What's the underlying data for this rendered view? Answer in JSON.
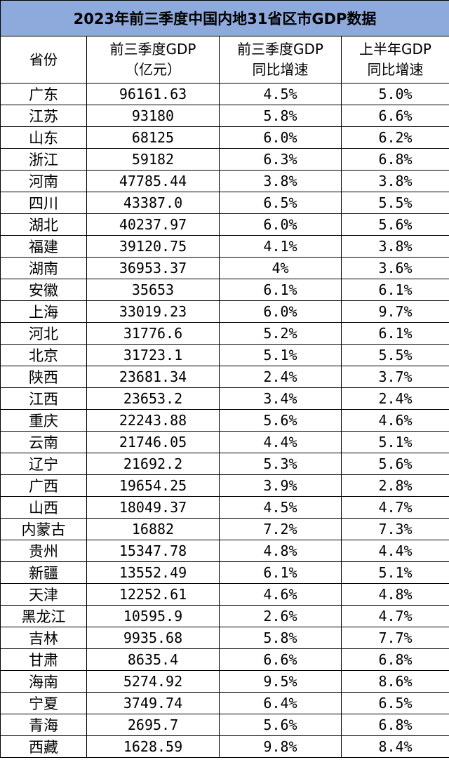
{
  "title": "2023年前三季度中国内地31省区市GDP数据",
  "headers": [
    {
      "line1": "省份",
      "line2": ""
    },
    {
      "line1": "前三季度GDP",
      "line2": "（亿元）"
    },
    {
      "line1": "前三季度GDP",
      "line2": "同比增速"
    },
    {
      "line1": "上半年GDP",
      "line2": "同比增速"
    }
  ],
  "rows": [
    {
      "province": "广东",
      "gdp": "96161.63",
      "q3_growth": "4.5%",
      "h1_growth": "5.0%"
    },
    {
      "province": "江苏",
      "gdp": "93180",
      "q3_growth": "5.8%",
      "h1_growth": "6.6%"
    },
    {
      "province": "山东",
      "gdp": "68125",
      "q3_growth": "6.0%",
      "h1_growth": "6.2%"
    },
    {
      "province": "浙江",
      "gdp": "59182",
      "q3_growth": "6.3%",
      "h1_growth": "6.8%"
    },
    {
      "province": "河南",
      "gdp": "47785.44",
      "q3_growth": "3.8%",
      "h1_growth": "3.8%"
    },
    {
      "province": "四川",
      "gdp": "43387.0",
      "q3_growth": "6.5%",
      "h1_growth": "5.5%"
    },
    {
      "province": "湖北",
      "gdp": "40237.97",
      "q3_growth": "6.0%",
      "h1_growth": "5.6%"
    },
    {
      "province": "福建",
      "gdp": "39120.75",
      "q3_growth": "4.1%",
      "h1_growth": "3.8%"
    },
    {
      "province": "湖南",
      "gdp": "36953.37",
      "q3_growth": "4%",
      "h1_growth": "3.6%"
    },
    {
      "province": "安徽",
      "gdp": "35653",
      "q3_growth": "6.1%",
      "h1_growth": "6.1%"
    },
    {
      "province": "上海",
      "gdp": "33019.23",
      "q3_growth": "6.0%",
      "h1_growth": "9.7%"
    },
    {
      "province": "河北",
      "gdp": "31776.6",
      "q3_growth": "5.2%",
      "h1_growth": "6.1%"
    },
    {
      "province": "北京",
      "gdp": "31723.1",
      "q3_growth": "5.1%",
      "h1_growth": "5.5%"
    },
    {
      "province": "陕西",
      "gdp": "23681.34",
      "q3_growth": "2.4%",
      "h1_growth": "3.7%"
    },
    {
      "province": "江西",
      "gdp": "23653.2",
      "q3_growth": "3.4%",
      "h1_growth": "2.4%"
    },
    {
      "province": "重庆",
      "gdp": "22243.88",
      "q3_growth": "5.6%",
      "h1_growth": "4.6%"
    },
    {
      "province": "云南",
      "gdp": "21746.05",
      "q3_growth": "4.4%",
      "h1_growth": "5.1%"
    },
    {
      "province": "辽宁",
      "gdp": "21692.2",
      "q3_growth": "5.3%",
      "h1_growth": "5.6%"
    },
    {
      "province": "广西",
      "gdp": "19654.25",
      "q3_growth": "3.9%",
      "h1_growth": "2.8%"
    },
    {
      "province": "山西",
      "gdp": "18049.37",
      "q3_growth": "4.5%",
      "h1_growth": "4.7%"
    },
    {
      "province": "内蒙古",
      "gdp": "16882",
      "q3_growth": "7.2%",
      "h1_growth": "7.3%"
    },
    {
      "province": "贵州",
      "gdp": "15347.78",
      "q3_growth": "4.8%",
      "h1_growth": "4.4%"
    },
    {
      "province": "新疆",
      "gdp": "13552.49",
      "q3_growth": "6.1%",
      "h1_growth": "5.1%"
    },
    {
      "province": "天津",
      "gdp": "12252.61",
      "q3_growth": "4.6%",
      "h1_growth": "4.8%"
    },
    {
      "province": "黑龙江",
      "gdp": "10595.9",
      "q3_growth": "2.6%",
      "h1_growth": "4.7%"
    },
    {
      "province": "吉林",
      "gdp": "9935.68",
      "q3_growth": "5.8%",
      "h1_growth": "7.7%"
    },
    {
      "province": "甘肃",
      "gdp": "8635.4",
      "q3_growth": "6.6%",
      "h1_growth": "6.8%"
    },
    {
      "province": "海南",
      "gdp": "5274.92",
      "q3_growth": "9.5%",
      "h1_growth": "8.6%"
    },
    {
      "province": "宁夏",
      "gdp": "3749.74",
      "q3_growth": "6.4%",
      "h1_growth": "6.5%"
    },
    {
      "province": "青海",
      "gdp": "2695.7",
      "q3_growth": "5.6%",
      "h1_growth": "6.8%"
    },
    {
      "province": "西藏",
      "gdp": "1628.59",
      "q3_growth": "9.8%",
      "h1_growth": "8.4%"
    }
  ],
  "colors": {
    "title_bg": "#8ea9db",
    "border": "#000000",
    "text": "#000000"
  }
}
